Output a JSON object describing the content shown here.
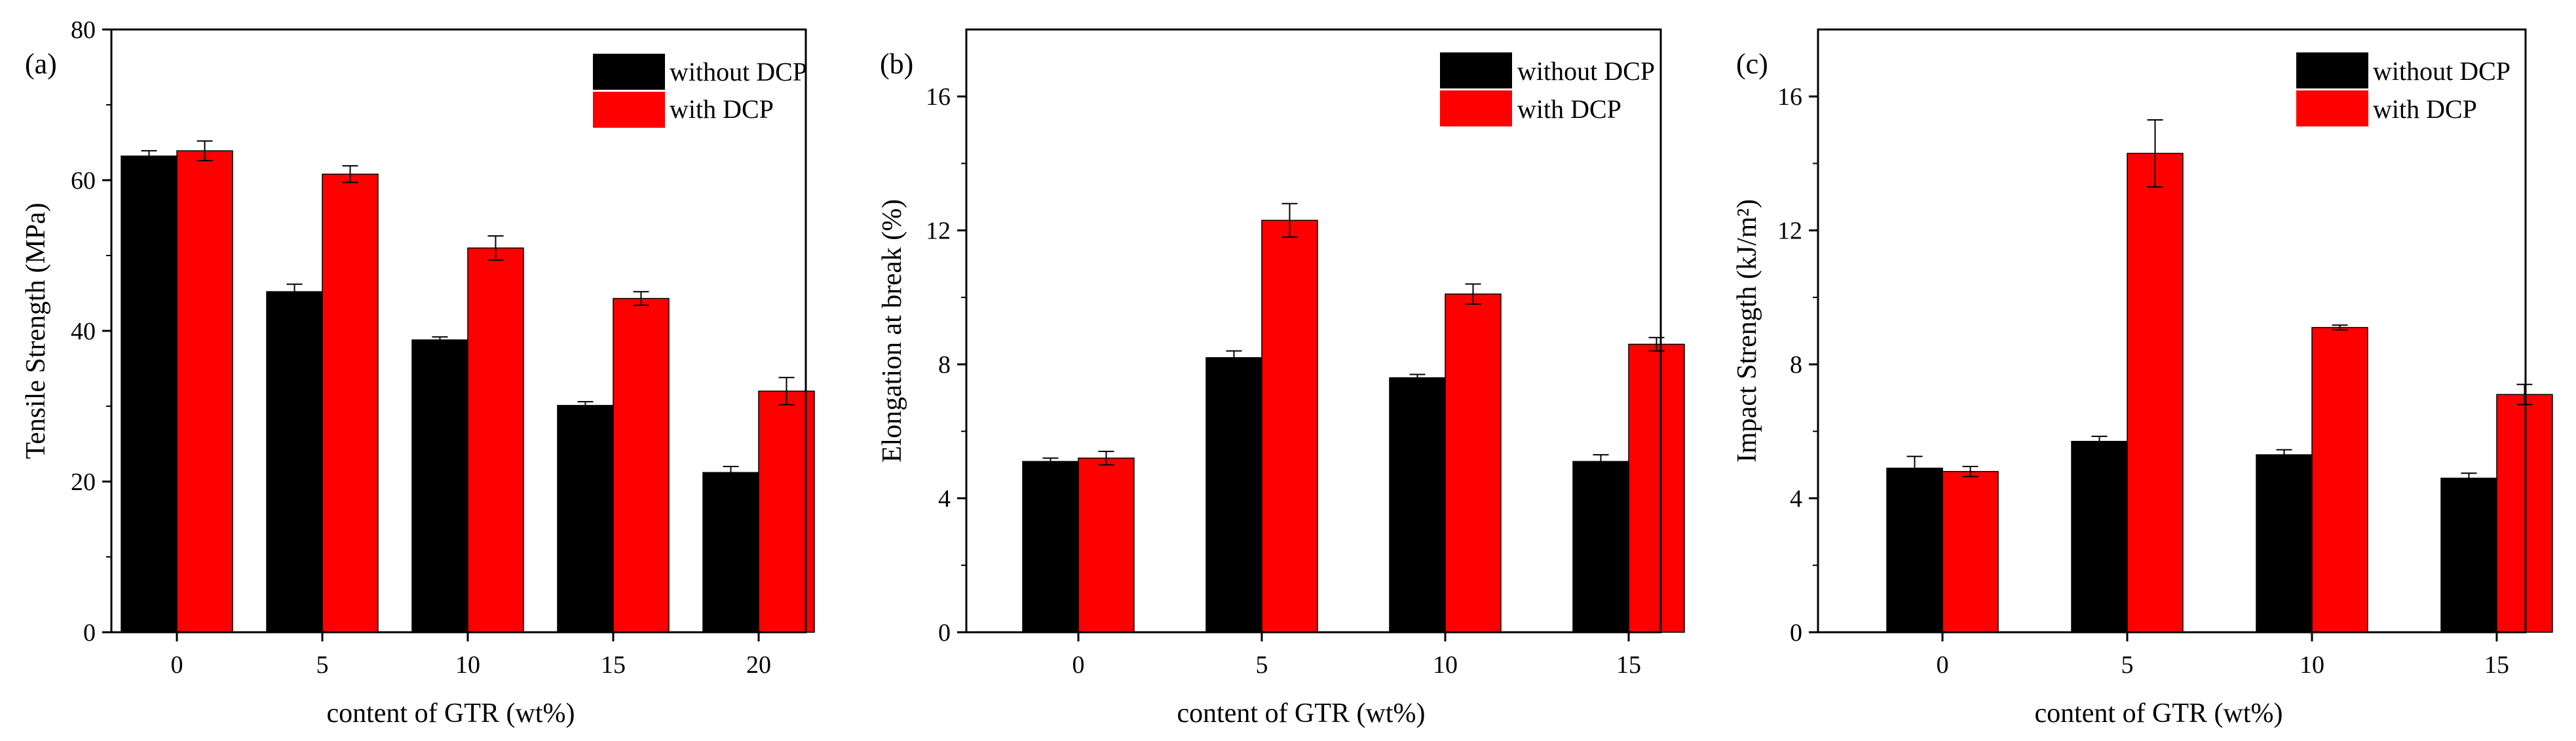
{
  "figure": {
    "colors": {
      "without_dcp": "#000000",
      "with_dcp": "#ff0000",
      "axis": "#000000"
    }
  },
  "chart_data": [
    {
      "type": "bar",
      "panel_label": "(a)",
      "title": "",
      "xlabel": "content of GTR (wt%)",
      "ylabel": "Tensile Strength (MPa)",
      "categories": [
        "0",
        "5",
        "10",
        "15",
        "20"
      ],
      "ylim": [
        0,
        80
      ],
      "yticks": [
        0,
        20,
        40,
        60,
        80
      ],
      "legend_position": "top-right",
      "series": [
        {
          "name": "without DCP",
          "color": "#000000",
          "values": [
            63.2,
            45.2,
            38.8,
            30.1,
            21.2
          ],
          "errors": [
            0.7,
            1.0,
            0.4,
            0.5,
            0.8
          ]
        },
        {
          "name": "with DCP",
          "color": "#ff0000",
          "values": [
            63.9,
            60.8,
            51.0,
            44.3,
            32.0
          ],
          "errors": [
            1.3,
            1.1,
            1.6,
            0.9,
            1.8
          ]
        }
      ]
    },
    {
      "type": "bar",
      "panel_label": "(b)",
      "title": "",
      "xlabel": "content of GTR (wt%)",
      "ylabel": "Elongation at break (%)",
      "categories": [
        "0",
        "5",
        "10",
        "15"
      ],
      "ylim": [
        0,
        18
      ],
      "yticks": [
        0,
        4,
        8,
        12,
        16
      ],
      "legend_position": "top-right",
      "series": [
        {
          "name": "without DCP",
          "color": "#000000",
          "values": [
            5.1,
            8.2,
            7.6,
            5.1
          ],
          "errors": [
            0.1,
            0.2,
            0.1,
            0.2
          ]
        },
        {
          "name": "with DCP",
          "color": "#ff0000",
          "values": [
            5.2,
            12.3,
            10.1,
            8.6
          ],
          "errors": [
            0.2,
            0.5,
            0.3,
            0.2
          ]
        }
      ]
    },
    {
      "type": "bar",
      "panel_label": "(c)",
      "title": "",
      "xlabel": "content of GTR (wt%)",
      "ylabel": "Impact Strength (kJ/m²)",
      "categories": [
        "0",
        "5",
        "10",
        "15"
      ],
      "ylim": [
        0,
        18
      ],
      "yticks": [
        0,
        4,
        8,
        12,
        16
      ],
      "legend_position": "top-right",
      "series": [
        {
          "name": "without DCP",
          "color": "#000000",
          "values": [
            4.9,
            5.7,
            5.3,
            4.6
          ],
          "errors": [
            0.35,
            0.15,
            0.15,
            0.15
          ]
        },
        {
          "name": "with DCP",
          "color": "#ff0000",
          "values": [
            4.8,
            14.3,
            9.1,
            7.1
          ],
          "errors": [
            0.15,
            1.0,
            0.07,
            0.3
          ]
        }
      ]
    }
  ]
}
